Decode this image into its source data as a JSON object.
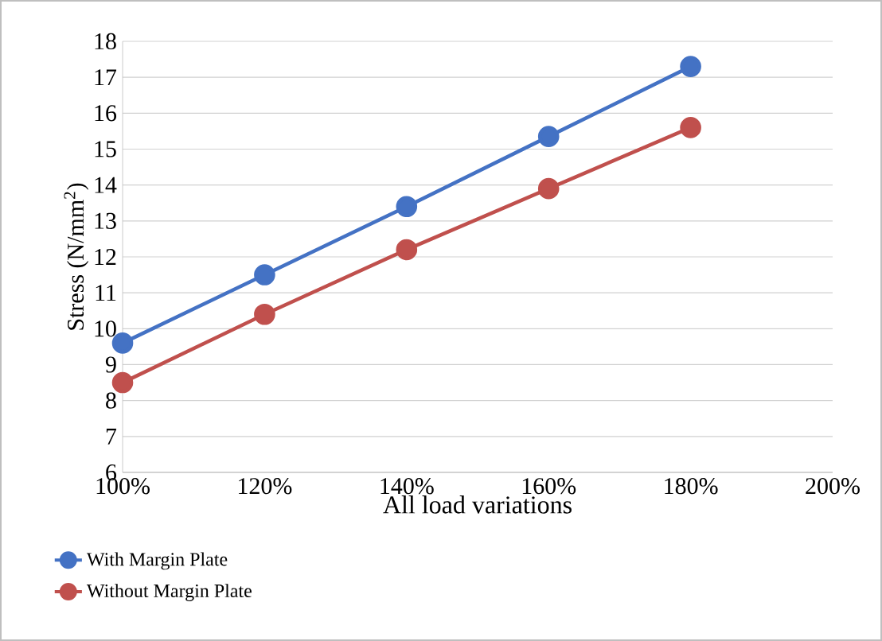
{
  "chart_data": {
    "type": "line",
    "xlabel": "All load variations",
    "ylabel": "Stress (N/mm$^{2}$)",
    "x": [
      100,
      120,
      140,
      160,
      180
    ],
    "xlim": [
      100,
      200
    ],
    "xticks": [
      {
        "value": 100,
        "label": "100%"
      },
      {
        "value": 120,
        "label": "120%"
      },
      {
        "value": 140,
        "label": "140%"
      },
      {
        "value": 160,
        "label": "160%"
      },
      {
        "value": 180,
        "label": "180%"
      },
      {
        "value": 200,
        "label": "200%"
      }
    ],
    "ylim": [
      6,
      18
    ],
    "yticks": [
      6,
      7,
      8,
      9,
      10,
      11,
      12,
      13,
      14,
      15,
      16,
      17,
      18
    ],
    "grid": "y",
    "legend": "bottom left",
    "marker": "circle",
    "line_style": "solid",
    "series": [
      {
        "name": "With Margin Plate",
        "color": "#4472c4",
        "values": [
          9.6,
          11.5,
          13.4,
          15.35,
          17.3
        ]
      },
      {
        "name": "Without Margin Plate",
        "color": "#c0504d",
        "values": [
          8.5,
          10.4,
          12.2,
          13.9,
          15.6
        ]
      }
    ]
  }
}
